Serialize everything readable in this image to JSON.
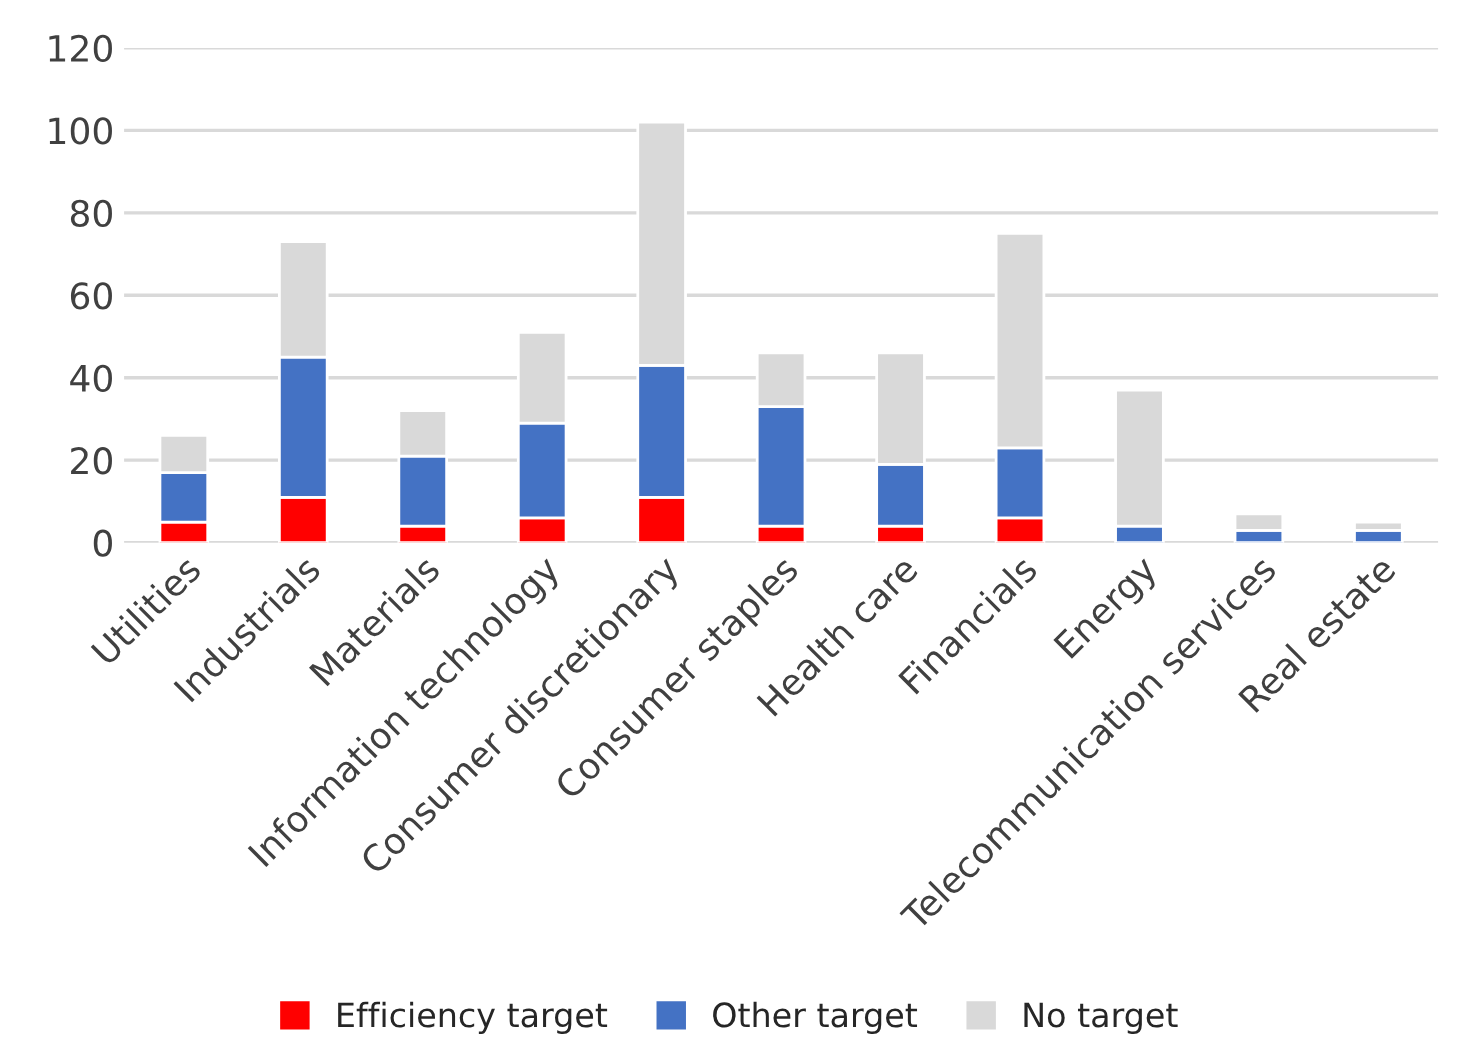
{
  "chart_data": {
    "type": "bar",
    "stacked": true,
    "categories": [
      "Utilities",
      "Industrials",
      "Materials",
      "Information technology",
      "Consumer discretionary",
      "Consumer staples",
      "Health care",
      "Financials",
      "Energy",
      "Telecommunication services",
      "Real estate"
    ],
    "series": [
      {
        "name": "Efficiency target",
        "color": "#ff0000",
        "values": [
          5,
          11,
          4,
          6,
          11,
          4,
          4,
          6,
          0,
          0,
          0
        ]
      },
      {
        "name": "Other target",
        "color": "#4472c4",
        "values": [
          12,
          34,
          17,
          23,
          32,
          29,
          15,
          17,
          4,
          3,
          3
        ]
      },
      {
        "name": "No target",
        "color": "#d9d9d9",
        "values": [
          9,
          28,
          11,
          22,
          59,
          13,
          27,
          52,
          33,
          4,
          2
        ]
      }
    ],
    "ylim": [
      0,
      120
    ],
    "yticks": [
      0,
      20,
      40,
      60,
      80,
      100,
      120
    ],
    "grid": "y",
    "legend": "bottom"
  }
}
